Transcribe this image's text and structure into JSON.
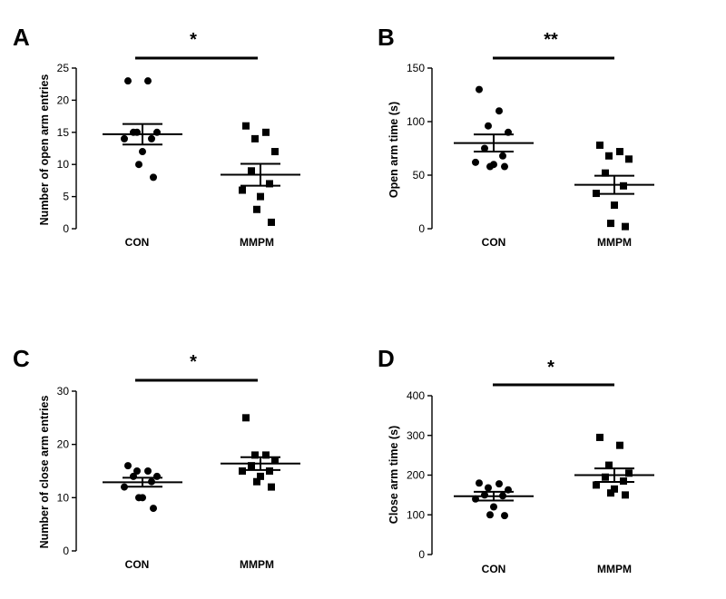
{
  "chart_data": [
    {
      "panel": "A",
      "type": "scatter",
      "ylabel": "Number of open arm entries",
      "categories": [
        "CON",
        "MMPM"
      ],
      "ylim": [
        0,
        25
      ],
      "yticks": [
        0,
        5,
        10,
        15,
        20,
        25
      ],
      "significance": "*",
      "series": [
        {
          "name": "CON",
          "marker": "circle",
          "mean": 14.7,
          "sem": 1.6,
          "values": [
            23,
            23,
            15,
            15,
            15,
            14,
            14,
            12,
            10,
            8
          ]
        },
        {
          "name": "MMPM",
          "marker": "square",
          "mean": 8.4,
          "sem": 1.7,
          "values": [
            16,
            15,
            14,
            12,
            9,
            7,
            6,
            5,
            3,
            1
          ]
        }
      ]
    },
    {
      "panel": "B",
      "type": "scatter",
      "ylabel": "Open arm time (s)",
      "categories": [
        "CON",
        "MMPM"
      ],
      "ylim": [
        0,
        150
      ],
      "yticks": [
        0,
        50,
        100,
        150
      ],
      "significance": "**",
      "series": [
        {
          "name": "CON",
          "marker": "circle",
          "mean": 80,
          "sem": 8,
          "values": [
            130,
            110,
            96,
            90,
            75,
            68,
            62,
            60,
            58,
            58
          ]
        },
        {
          "name": "MMPM",
          "marker": "square",
          "mean": 41,
          "sem": 8.5,
          "values": [
            78,
            72,
            68,
            65,
            52,
            40,
            33,
            22,
            5,
            2
          ]
        }
      ]
    },
    {
      "panel": "C",
      "type": "scatter",
      "ylabel": "Number of close arm entries",
      "categories": [
        "CON",
        "MMPM"
      ],
      "ylim": [
        0,
        30
      ],
      "yticks": [
        0,
        10,
        20,
        30
      ],
      "significance": "*",
      "series": [
        {
          "name": "CON",
          "marker": "circle",
          "mean": 12.9,
          "sem": 0.85,
          "values": [
            16,
            15,
            15,
            14,
            14,
            13,
            12,
            10,
            10,
            8
          ]
        },
        {
          "name": "MMPM",
          "marker": "square",
          "mean": 16.4,
          "sem": 1.2,
          "values": [
            25,
            18,
            18,
            17,
            16,
            15,
            15,
            14,
            13,
            12
          ]
        }
      ]
    },
    {
      "panel": "D",
      "type": "scatter",
      "ylabel": "Close arm time (s)",
      "categories": [
        "CON",
        "MMPM"
      ],
      "ylim": [
        0,
        400
      ],
      "yticks": [
        0,
        100,
        200,
        300,
        400
      ],
      "significance": "*",
      "series": [
        {
          "name": "CON",
          "marker": "circle",
          "mean": 147,
          "sem": 11,
          "values": [
            180,
            178,
            168,
            163,
            150,
            148,
            140,
            120,
            100,
            98
          ]
        },
        {
          "name": "MMPM",
          "marker": "square",
          "mean": 200,
          "sem": 17,
          "values": [
            295,
            275,
            225,
            205,
            195,
            185,
            175,
            165,
            155,
            150
          ]
        }
      ]
    }
  ]
}
